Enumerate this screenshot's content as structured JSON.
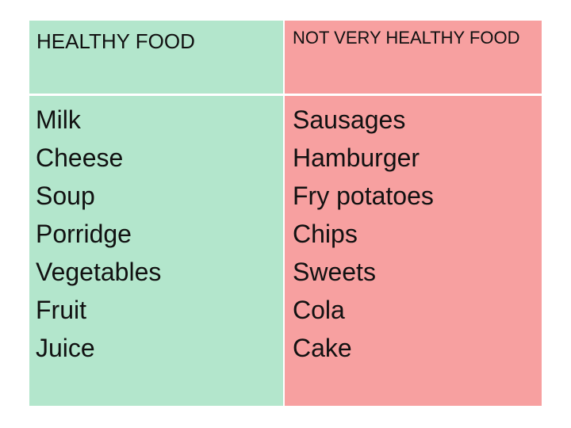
{
  "table": {
    "healthy": {
      "title": "HEALTHY FOOD",
      "items": [
        "Milk",
        "Cheese",
        "Soup",
        "Porridge",
        "Vegetables",
        "Fruit",
        "Juice"
      ],
      "color": "#b3e6cc"
    },
    "unhealthy": {
      "title": "NOT VERY HEALTHY FOOD",
      "items": [
        "Sausages",
        "Hamburger",
        "Fry potatoes",
        "Chips",
        "Sweets",
        "Cola",
        "Cake"
      ],
      "color": "#f7a0a0"
    }
  }
}
